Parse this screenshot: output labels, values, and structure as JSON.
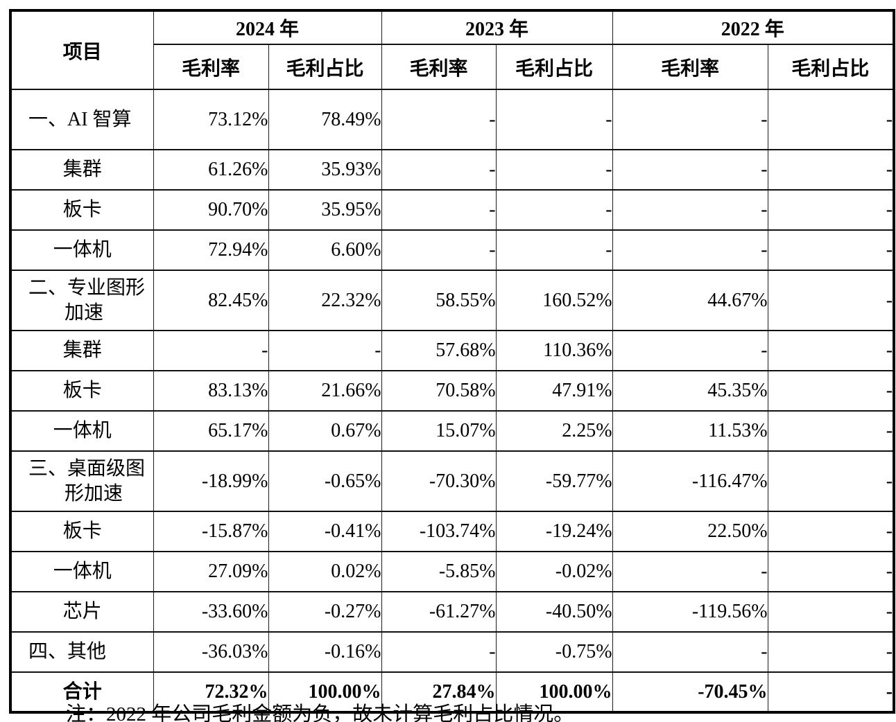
{
  "table": {
    "header": {
      "item_label": "项目",
      "years": [
        "2024 年",
        "2023 年",
        "2022 年"
      ],
      "sub_headers": [
        "毛利率",
        "毛利占比"
      ]
    },
    "rows": [
      {
        "type": "section",
        "label": "一、AI 智算",
        "cells": [
          "73.12%",
          "78.49%",
          "-",
          "-",
          "-",
          "-"
        ]
      },
      {
        "type": "item",
        "label": "集群",
        "cells": [
          "61.26%",
          "35.93%",
          "-",
          "-",
          "-",
          "-"
        ]
      },
      {
        "type": "item",
        "label": "板卡",
        "cells": [
          "90.70%",
          "35.95%",
          "-",
          "-",
          "-",
          "-"
        ]
      },
      {
        "type": "item",
        "label": "一体机",
        "cells": [
          "72.94%",
          "6.60%",
          "-",
          "-",
          "-",
          "-"
        ]
      },
      {
        "type": "section",
        "label": "二、专业图形加速",
        "cells": [
          "82.45%",
          "22.32%",
          "58.55%",
          "160.52%",
          "44.67%",
          "-"
        ]
      },
      {
        "type": "item",
        "label": "集群",
        "cells": [
          "-",
          "-",
          "57.68%",
          "110.36%",
          "-",
          "-"
        ]
      },
      {
        "type": "item",
        "label": "板卡",
        "cells": [
          "83.13%",
          "21.66%",
          "70.58%",
          "47.91%",
          "45.35%",
          "-"
        ]
      },
      {
        "type": "item",
        "label": "一体机",
        "cells": [
          "65.17%",
          "0.67%",
          "15.07%",
          "2.25%",
          "11.53%",
          "-"
        ]
      },
      {
        "type": "section",
        "label": "三、桌面级图形加速",
        "cells": [
          "-18.99%",
          "-0.65%",
          "-70.30%",
          "-59.77%",
          "-116.47%",
          "-"
        ]
      },
      {
        "type": "item",
        "label": "板卡",
        "cells": [
          "-15.87%",
          "-0.41%",
          "-103.74%",
          "-19.24%",
          "22.50%",
          "-"
        ]
      },
      {
        "type": "item",
        "label": "一体机",
        "cells": [
          "27.09%",
          "0.02%",
          "-5.85%",
          "-0.02%",
          "-",
          "-"
        ]
      },
      {
        "type": "item",
        "label": "芯片",
        "cells": [
          "-33.60%",
          "-0.27%",
          "-61.27%",
          "-40.50%",
          "-119.56%",
          "-"
        ]
      },
      {
        "type": "section",
        "label": "四、其他",
        "cells": [
          "-36.03%",
          "-0.16%",
          "-",
          "-0.75%",
          "-",
          "-"
        ]
      },
      {
        "type": "total",
        "label": "合计",
        "cells": [
          "72.32%",
          "100.00%",
          "27.84%",
          "100.00%",
          "-70.45%",
          "-"
        ]
      }
    ],
    "note": "注：2022 年公司毛利金额为负，故未计算毛利占比情况。"
  }
}
